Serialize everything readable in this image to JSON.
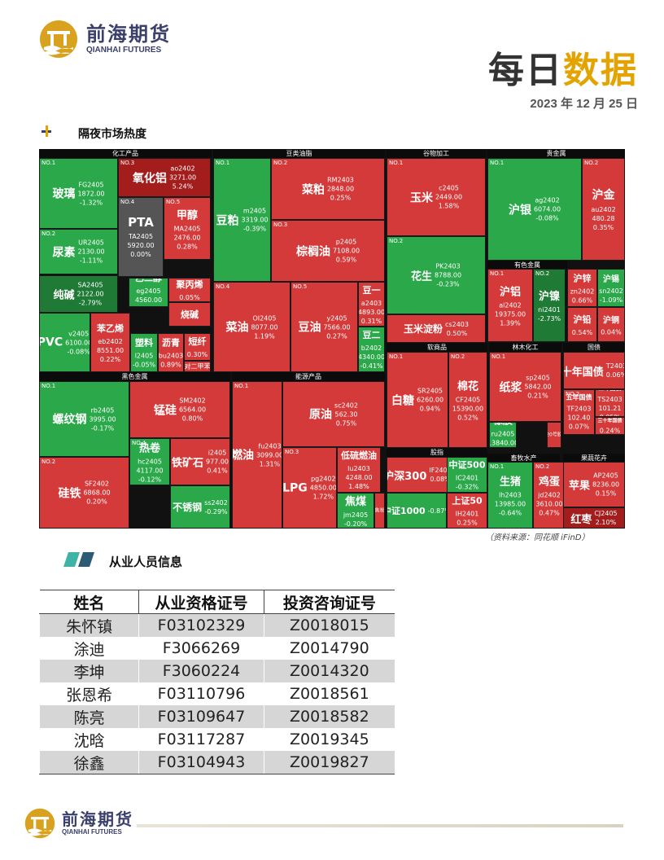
{
  "logo": {
    "cn": "前海期货",
    "en": "QIANHAI FUTURES"
  },
  "title_main": "每日",
  "title_accent": "数据",
  "date": "2023 年 12 月 25 日",
  "section1_title": "隔夜市场热度",
  "section2_title": "从业人员信息",
  "colors": {
    "up": "#d53a3a",
    "up_dark": "#a31d1d",
    "down": "#2aa84a",
    "down_dark": "#1f7a35",
    "flat": "#555555",
    "accent": "#e3a300"
  },
  "heatmap": {
    "groups": [
      "化工产品",
      "豆类油脂",
      "谷物加工",
      "贵金属",
      "有色金属",
      "软商品",
      "林木化工",
      "国债",
      "黑色金属",
      "能源产品",
      "股指",
      "畜牧水产",
      "果蔬花卉"
    ],
    "tiles": [
      {
        "no": "NO.1",
        "name": "玻璃",
        "code": "FG2405",
        "price": "1872.00",
        "chg": "-1.32%"
      },
      {
        "no": "NO.2",
        "name": "尿素",
        "code": "UR2405",
        "price": "2130.00",
        "chg": "-1.11%"
      },
      {
        "no": "NO.3",
        "name": "氧化铝",
        "code": "ao2402",
        "price": "3271.00",
        "chg": "5.24%"
      },
      {
        "no": "NO.4",
        "name": "PTA",
        "code": "TA2405",
        "price": "5920.00",
        "chg": "0.00%"
      },
      {
        "no": "NO.5",
        "name": "甲醇",
        "code": "MA2405",
        "price": "2476.00",
        "chg": "0.28%"
      },
      {
        "no": "",
        "name": "纯碱",
        "code": "SA2405",
        "price": "2122.00",
        "chg": "-2.79%"
      },
      {
        "no": "",
        "name": "乙二醇",
        "code": "eg2405",
        "price": "4560.00",
        "chg": "-0.22%"
      },
      {
        "no": "",
        "name": "聚丙烯",
        "code": "",
        "price": "",
        "chg": "0.05%"
      },
      {
        "no": "",
        "name": "烧碱",
        "code": "",
        "price": "",
        "chg": ""
      },
      {
        "no": "",
        "name": "PVC",
        "code": "v2405",
        "price": "6100.00",
        "chg": "-0.08%"
      },
      {
        "no": "",
        "name": "苯乙烯",
        "code": "eb2402",
        "price": "8551.00",
        "chg": "0.22%"
      },
      {
        "no": "",
        "name": "塑料",
        "code": "l2405",
        "price": "",
        "chg": "-0.05%"
      },
      {
        "no": "",
        "name": "沥青",
        "code": "bu2403",
        "price": "",
        "chg": "0.89%"
      },
      {
        "no": "",
        "name": "短纤",
        "code": "",
        "price": "",
        "chg": "0.30%"
      },
      {
        "no": "",
        "name": "",
        "code": "对二甲苯",
        "price": "",
        "chg": ""
      },
      {
        "no": "NO.1",
        "name": "豆粕",
        "code": "m2405",
        "price": "3319.00",
        "chg": "-0.39%"
      },
      {
        "no": "NO.2",
        "name": "菜粕",
        "code": "RM2403",
        "price": "2848.00",
        "chg": "0.25%"
      },
      {
        "no": "NO.3",
        "name": "棕榈油",
        "code": "p2405",
        "price": "7108.00",
        "chg": "0.59%"
      },
      {
        "no": "NO.4",
        "name": "菜油",
        "code": "OI2405",
        "price": "8077.00",
        "chg": "1.19%"
      },
      {
        "no": "NO.5",
        "name": "豆油",
        "code": "y2405",
        "price": "7566.00",
        "chg": "0.27%"
      },
      {
        "no": "",
        "name": "豆一",
        "code": "a2403",
        "price": "4893.00",
        "chg": "0.31%"
      },
      {
        "no": "",
        "name": "豆二",
        "code": "b2402",
        "price": "4340.00",
        "chg": "-0.41%"
      },
      {
        "no": "NO.1",
        "name": "玉米",
        "code": "c2405",
        "price": "2449.00",
        "chg": "1.58%"
      },
      {
        "no": "NO.2",
        "name": "花生",
        "code": "PK2403",
        "price": "8788.00",
        "chg": "-0.23%"
      },
      {
        "no": "",
        "name": "玉米淀粉",
        "code": "cs2403",
        "price": "",
        "chg": "0.50%"
      },
      {
        "no": "NO.1",
        "name": "沪银",
        "code": "ag2402",
        "price": "6074.00",
        "chg": "-0.08%"
      },
      {
        "no": "NO.2",
        "name": "沪金",
        "code": "au2402",
        "price": "480.28",
        "chg": "0.35%"
      },
      {
        "no": "NO.1",
        "name": "沪铝",
        "code": "al2402",
        "price": "19375.00",
        "chg": "1.39%"
      },
      {
        "no": "NO.2",
        "name": "沪镍",
        "code": "ni2401",
        "price": "",
        "chg": "-2.73%"
      },
      {
        "no": "",
        "name": "沪锌",
        "code": "zn2402",
        "price": "",
        "chg": "0.66%"
      },
      {
        "no": "",
        "name": "沪锡",
        "code": "sn2402",
        "price": "",
        "chg": "-1.09%"
      },
      {
        "no": "",
        "name": "沪铅",
        "code": "",
        "price": "",
        "chg": "0.54%"
      },
      {
        "no": "",
        "name": "沪铜",
        "code": "",
        "price": "",
        "chg": "0.04%"
      },
      {
        "no": "NO.1",
        "name": "白糖",
        "code": "SR2405",
        "price": "6260.00",
        "chg": "0.94%"
      },
      {
        "no": "NO.2",
        "name": "棉花",
        "code": "CF2405",
        "price": "15390.00",
        "chg": "0.52%"
      },
      {
        "no": "NO.1",
        "name": "纸浆",
        "code": "sp2405",
        "price": "5842.00",
        "chg": "0.21%"
      },
      {
        "no": "",
        "name": "橡胶",
        "code": "ru2405",
        "price": "13840.00",
        "chg": "-0.07%"
      },
      {
        "no": "",
        "name": "",
        "code": "20号胶",
        "price": "",
        "chg": ""
      },
      {
        "no": "",
        "name": "十年国债",
        "code": "T2403",
        "price": "",
        "chg": "0.06%"
      },
      {
        "no": "NO.2",
        "name": "五年国债",
        "code": "TF2403",
        "price": "102.40",
        "chg": "0.07%"
      },
      {
        "no": "",
        "name": "二年国债",
        "code": "TS2403",
        "price": "101.21",
        "chg": "0.05%"
      },
      {
        "no": "",
        "name": "三十年国债",
        "code": "",
        "price": "",
        "chg": "0.24%"
      },
      {
        "no": "NO.1",
        "name": "螺纹钢",
        "code": "rb2405",
        "price": "3995.00",
        "chg": "-0.17%"
      },
      {
        "no": "NO.2",
        "name": "硅铁",
        "code": "SF2402",
        "price": "6868.00",
        "chg": "0.20%"
      },
      {
        "no": "",
        "name": "锰硅",
        "code": "SM2402",
        "price": "6564.00",
        "chg": "0.80%"
      },
      {
        "no": "NO.4",
        "name": "热卷",
        "code": "hc2405",
        "price": "4117.00",
        "chg": "-0.12%"
      },
      {
        "no": "",
        "name": "铁矿石",
        "code": "i2405",
        "price": "977.00",
        "chg": "0.41%"
      },
      {
        "no": "",
        "name": "不锈钢",
        "code": "ss2402",
        "price": "",
        "chg": "-0.29%"
      },
      {
        "no": "NO.1",
        "name": "燃油",
        "code": "fu2403",
        "price": "3099.00",
        "chg": "1.31%"
      },
      {
        "no": "",
        "name": "原油",
        "code": "sc2402",
        "price": "562.30",
        "chg": "0.75%"
      },
      {
        "no": "NO.3",
        "name": "LPG",
        "code": "pg2402",
        "price": "4850.00",
        "chg": "1.72%"
      },
      {
        "no": "",
        "name": "低硫燃油",
        "code": "lu2403",
        "price": "4248.00",
        "chg": "1.48%"
      },
      {
        "no": "",
        "name": "焦煤",
        "code": "jm2405",
        "price": "",
        "chg": "-0.20%"
      },
      {
        "no": "",
        "name": "",
        "code": "焦炭",
        "price": "",
        "chg": ""
      },
      {
        "no": "",
        "name": "沪深300",
        "code": "IF2401",
        "price": "",
        "chg": "0.08%"
      },
      {
        "no": "",
        "name": "中证500",
        "code": "IC2401",
        "price": "",
        "chg": "-0.32%"
      },
      {
        "no": "",
        "name": "上证50",
        "code": "IH2401",
        "price": "",
        "chg": "0.25%"
      },
      {
        "no": "",
        "name": "中证1000",
        "code": "",
        "price": "",
        "chg": "-0.87%"
      },
      {
        "no": "NO.1",
        "name": "生猪",
        "code": "lh2403",
        "price": "13985.00",
        "chg": "-0.64%"
      },
      {
        "no": "NO.2",
        "name": "鸡蛋",
        "code": "jd2402",
        "price": "3610.00",
        "chg": "0.47%"
      },
      {
        "no": "",
        "name": "苹果",
        "code": "AP2405",
        "price": "8236.00",
        "chg": "0.15%"
      },
      {
        "no": "",
        "name": "红枣",
        "code": "CJ2405",
        "price": "",
        "chg": "2.10%"
      }
    ]
  },
  "source_note": "（资料来源：同花顺 iFinD）",
  "staff_table": {
    "headers": [
      "姓名",
      "从业资格证号",
      "投资咨询证号"
    ],
    "rows": [
      [
        "朱怀镇",
        "F03102329",
        "Z0018015"
      ],
      [
        "涂迪",
        "F3066269",
        "Z0014790"
      ],
      [
        "李坤",
        "F3060224",
        "Z0014320"
      ],
      [
        "张恩希",
        "F03110796",
        "Z0018561"
      ],
      [
        "陈亮",
        "F03109647",
        "Z0018582"
      ],
      [
        "沈晗",
        "F03117287",
        "Z0019345"
      ],
      [
        "徐鑫",
        "F03104943",
        "Z0019827"
      ]
    ]
  }
}
